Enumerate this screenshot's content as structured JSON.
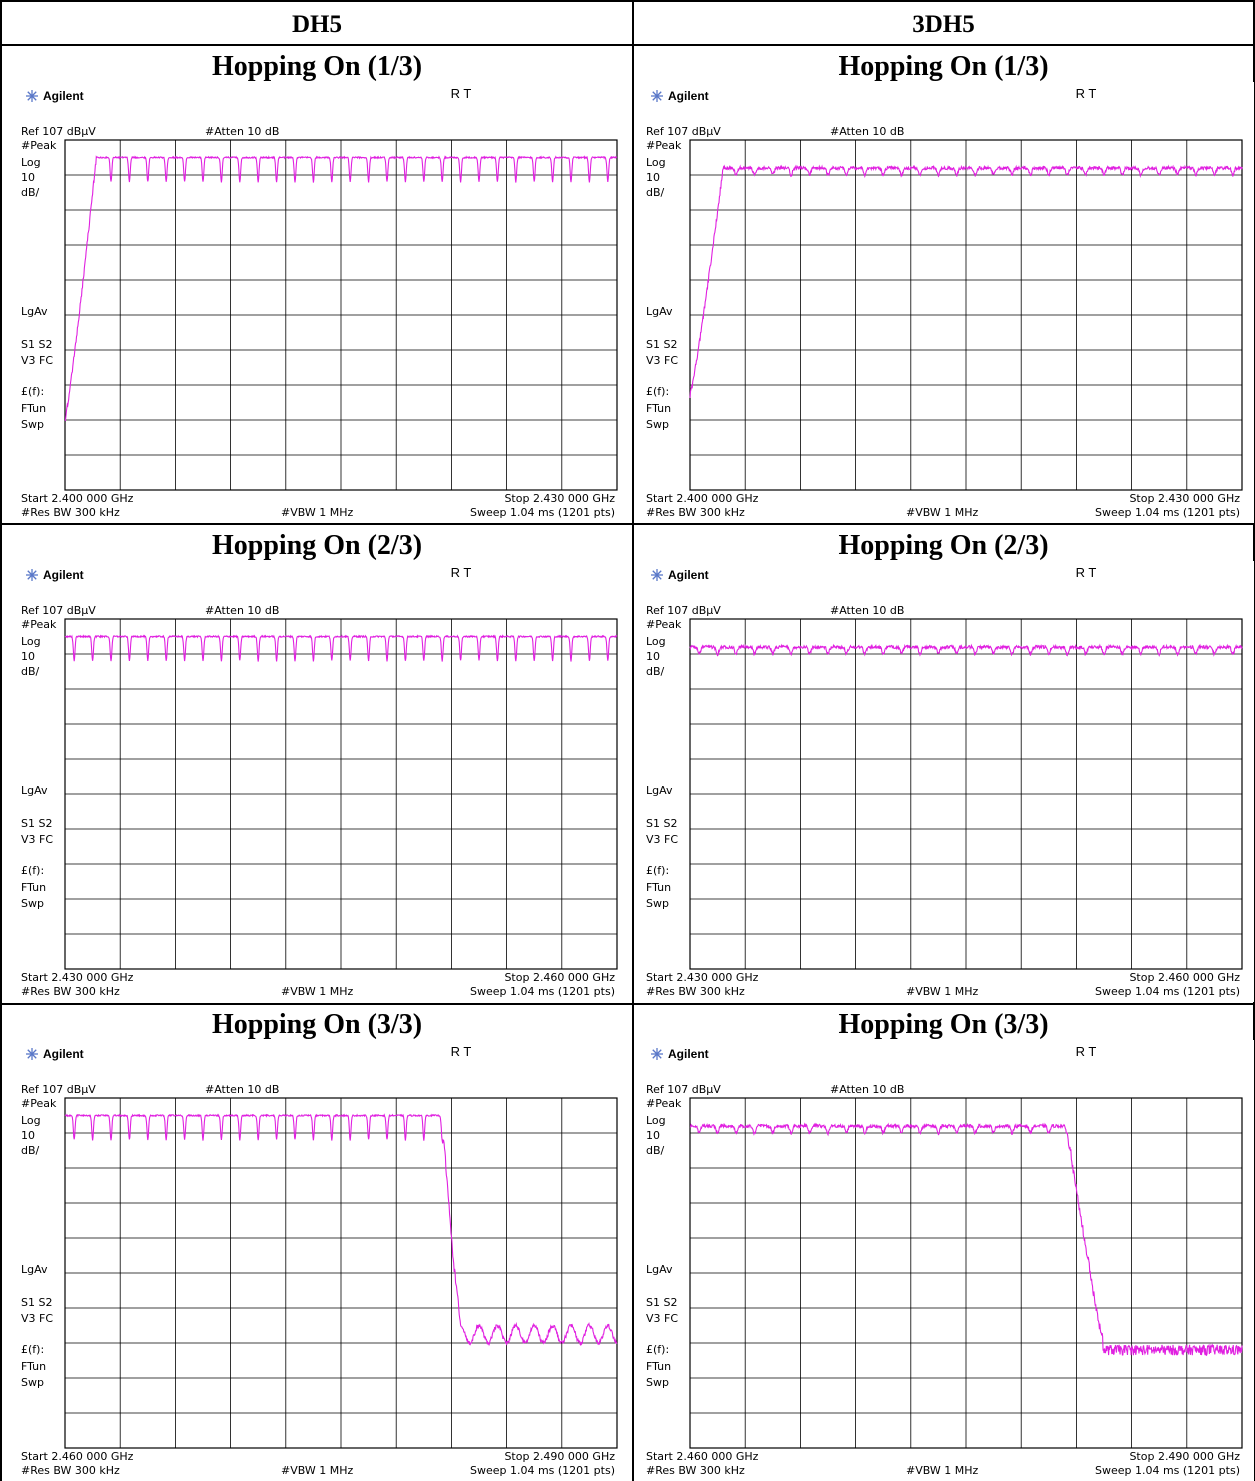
{
  "report": {
    "columns": [
      "DH5",
      "3DH5"
    ],
    "row_titles": [
      "Hopping On (1/3)",
      "Hopping On (2/3)",
      "Hopping On (3/3)"
    ]
  },
  "analyzer": {
    "brand": "Agilent",
    "rt": "R   T",
    "ref": "Ref 107 dBμV",
    "atten": "#Atten 10 dB",
    "side_labels": [
      "#Peak",
      "Log",
      "10",
      "dB/",
      "LgAv",
      "S1  S2",
      "V3  FC",
      "£(f):",
      "FTun",
      "Swp"
    ],
    "res_bw": "#Res BW 300 kHz",
    "vbw": "#VBW 1 MHz",
    "sweep": "Sweep 1.04 ms (1201 pts)"
  },
  "colors": {
    "trace": "#e020e0",
    "grid": "#000000",
    "border": "#000000"
  },
  "chart_data": [
    {
      "type": "line",
      "x_range_ghz": [
        2.4,
        2.43
      ],
      "start": "Start 2.400 000 GHz",
      "stop": "Stop 2.430 000 GHz",
      "yunit": "dBμV",
      "ylim": [
        7,
        107
      ],
      "grid": true,
      "mode": "gfsk",
      "start_level_dbuv": 27,
      "rise_end_ghz": 2.4017,
      "channels_ghz": [
        2.401,
        2.402,
        2.403,
        2.404,
        2.405,
        2.406,
        2.407,
        2.408,
        2.409,
        2.41,
        2.411,
        2.412,
        2.413,
        2.414,
        2.415,
        2.416,
        2.417,
        2.418,
        2.419,
        2.42,
        2.421,
        2.422,
        2.423,
        2.424,
        2.425,
        2.426,
        2.427,
        2.428,
        2.429
      ],
      "peak_dbuv": 102,
      "dip_dbuv": 95
    },
    {
      "type": "line",
      "x_range_ghz": [
        2.4,
        2.43
      ],
      "start": "Start 2.400 000 GHz",
      "stop": "Stop 2.430 000 GHz",
      "yunit": "dBμV",
      "ylim": [
        7,
        107
      ],
      "grid": true,
      "mode": "edr",
      "start_level_dbuv": 34,
      "rise_end_ghz": 2.4018,
      "channels_ghz": [
        2.401,
        2.402,
        2.403,
        2.404,
        2.405,
        2.406,
        2.407,
        2.408,
        2.409,
        2.41,
        2.411,
        2.412,
        2.413,
        2.414,
        2.415,
        2.416,
        2.417,
        2.418,
        2.419,
        2.42,
        2.421,
        2.422,
        2.423,
        2.424,
        2.425,
        2.426,
        2.427,
        2.428,
        2.429
      ],
      "peak_dbuv": 99,
      "dip_dbuv": 97
    },
    {
      "type": "line",
      "x_range_ghz": [
        2.43,
        2.46
      ],
      "start": "Start 2.430 000 GHz",
      "stop": "Stop 2.460 000 GHz",
      "yunit": "dBμV",
      "ylim": [
        7,
        107
      ],
      "grid": true,
      "mode": "gfsk",
      "channels_ghz": [
        2.43,
        2.431,
        2.432,
        2.433,
        2.434,
        2.435,
        2.436,
        2.437,
        2.438,
        2.439,
        2.44,
        2.441,
        2.442,
        2.443,
        2.444,
        2.445,
        2.446,
        2.447,
        2.448,
        2.449,
        2.45,
        2.451,
        2.452,
        2.453,
        2.454,
        2.455,
        2.456,
        2.457,
        2.458,
        2.459,
        2.46
      ],
      "peak_dbuv": 102,
      "dip_dbuv": 95
    },
    {
      "type": "line",
      "x_range_ghz": [
        2.43,
        2.46
      ],
      "start": "Start 2.430 000 GHz",
      "stop": "Stop 2.460 000 GHz",
      "yunit": "dBμV",
      "ylim": [
        7,
        107
      ],
      "grid": true,
      "mode": "edr",
      "channels_ghz": [
        2.43,
        2.431,
        2.432,
        2.433,
        2.434,
        2.435,
        2.436,
        2.437,
        2.438,
        2.439,
        2.44,
        2.441,
        2.442,
        2.443,
        2.444,
        2.445,
        2.446,
        2.447,
        2.448,
        2.449,
        2.45,
        2.451,
        2.452,
        2.453,
        2.454,
        2.455,
        2.456,
        2.457,
        2.458,
        2.459,
        2.46
      ],
      "peak_dbuv": 99,
      "dip_dbuv": 97
    },
    {
      "type": "line",
      "x_range_ghz": [
        2.46,
        2.49
      ],
      "start": "Start 2.460 000 GHz",
      "stop": "Stop 2.490 000 GHz",
      "yunit": "dBμV",
      "ylim": [
        7,
        107
      ],
      "grid": true,
      "mode": "gfsk",
      "channels_ghz": [
        2.461,
        2.462,
        2.463,
        2.464,
        2.465,
        2.466,
        2.467,
        2.468,
        2.469,
        2.47,
        2.471,
        2.472,
        2.473,
        2.474,
        2.475,
        2.476,
        2.477,
        2.478,
        2.479,
        2.48
      ],
      "peak_dbuv": 102,
      "dip_dbuv": 95,
      "fall_start_ghz": 2.4805,
      "fall_end_ghz": 2.4815,
      "floor_dbuv": 37
    },
    {
      "type": "line",
      "x_range_ghz": [
        2.46,
        2.49
      ],
      "start": "Start 2.460 000 GHz",
      "stop": "Stop 2.490 000 GHz",
      "yunit": "dBμV",
      "ylim": [
        7,
        107
      ],
      "grid": true,
      "mode": "edr",
      "channels_ghz": [
        2.461,
        2.462,
        2.463,
        2.464,
        2.465,
        2.466,
        2.467,
        2.468,
        2.469,
        2.47,
        2.471,
        2.472,
        2.473,
        2.474,
        2.475,
        2.476,
        2.477,
        2.478,
        2.479,
        2.48
      ],
      "peak_dbuv": 99,
      "dip_dbuv": 97,
      "fall_start_ghz": 2.4805,
      "fall_end_ghz": 2.4825,
      "floor_dbuv": 35
    }
  ]
}
